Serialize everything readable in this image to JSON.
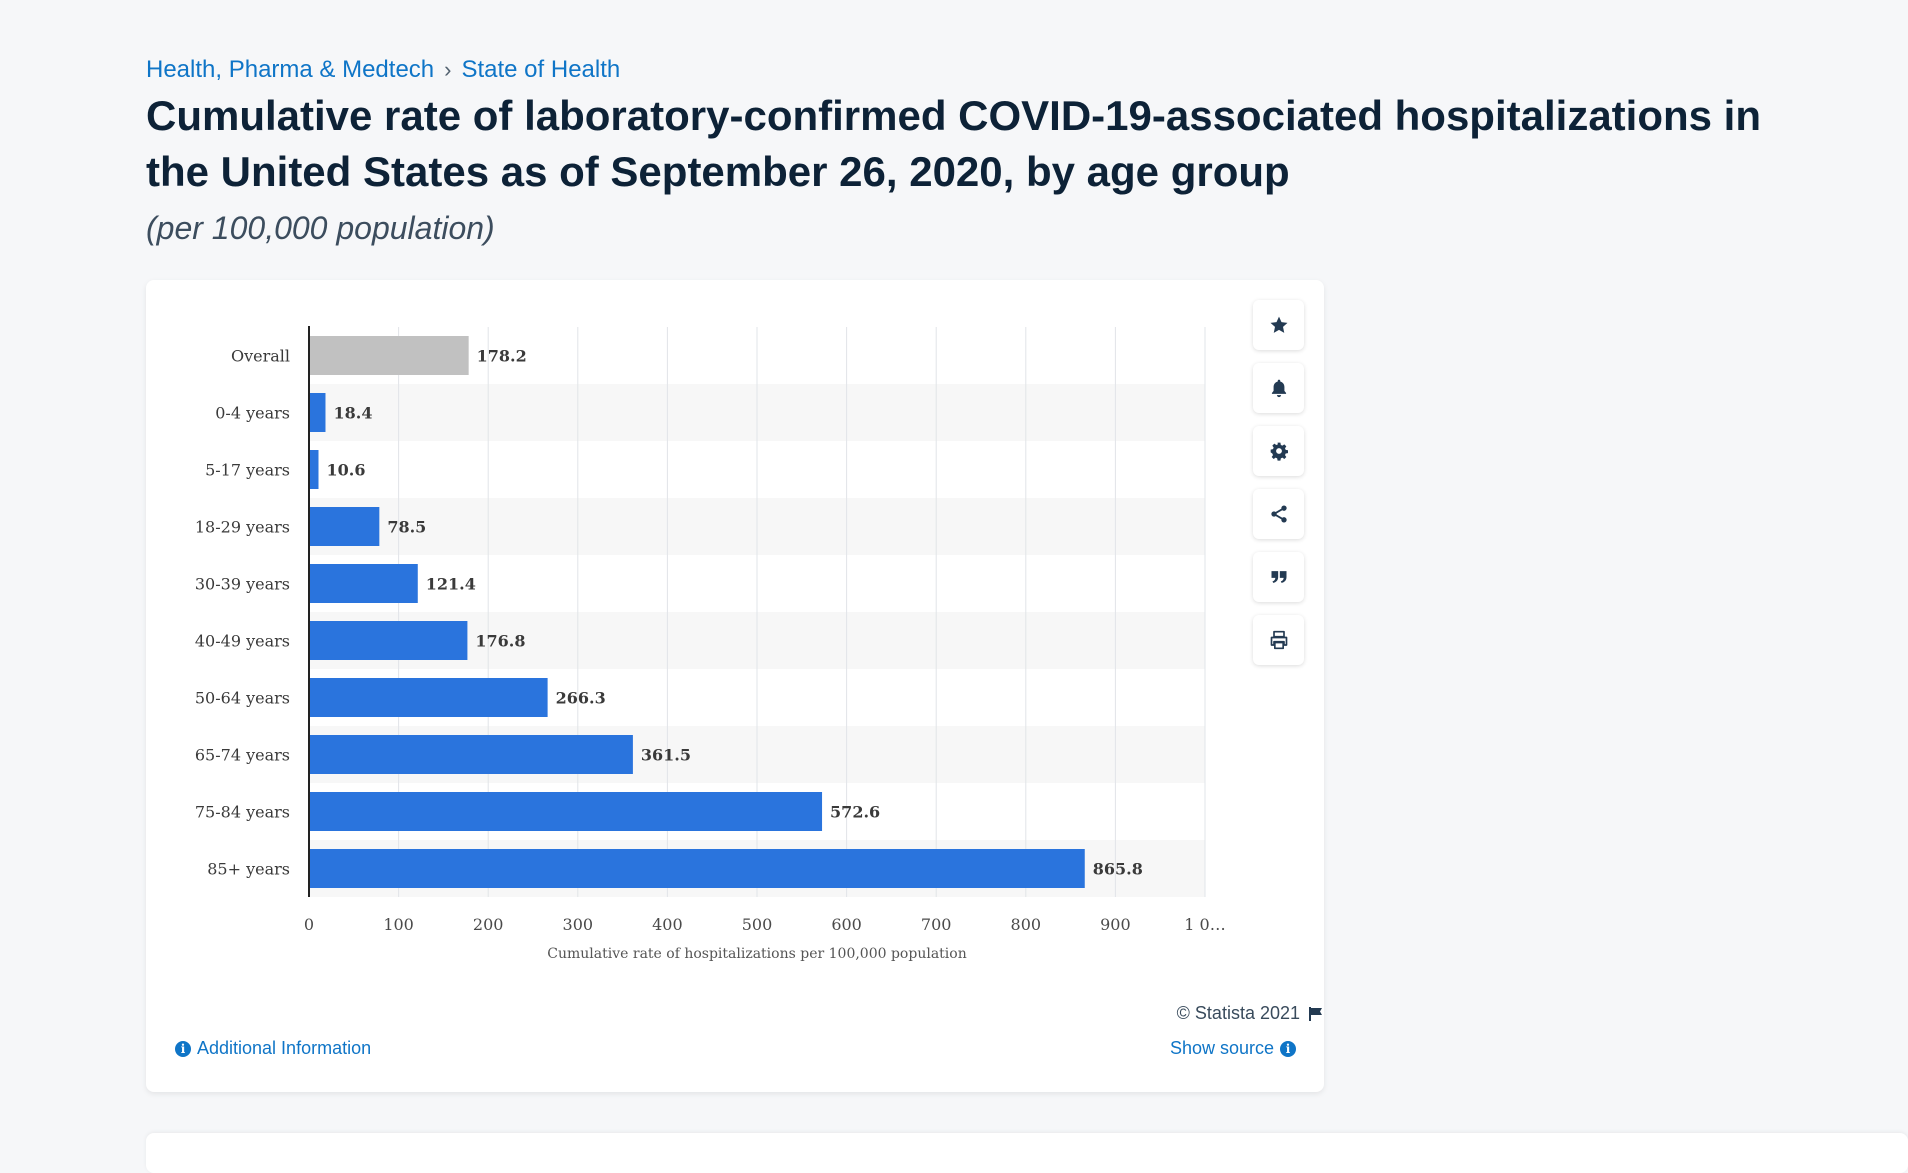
{
  "breadcrumb": {
    "category": "Health, Pharma & Medtech",
    "separator": "›",
    "topic": "State of Health"
  },
  "title": "Cumulative rate of laboratory-confirmed COVID-19-associated hospitalizations in the United States as of September 26, 2020, by age group",
  "subtitle": "(per 100,000 population)",
  "toolbar": {
    "icons": [
      "star-icon",
      "bell-icon",
      "gear-icon",
      "share-icon",
      "quote-icon",
      "print-icon"
    ]
  },
  "footer": {
    "copyright": "© Statista 2021",
    "additional_info": "Additional Information",
    "show_source": "Show source"
  },
  "colors": {
    "bar": "#2a74dd",
    "overall_bar": "#c1c1c1",
    "link": "#0f75c7"
  },
  "chart_data": {
    "type": "bar",
    "orientation": "horizontal",
    "categories": [
      "Overall",
      "0-4 years",
      "5-17 years",
      "18-29 years",
      "30-39 years",
      "40-49 years",
      "50-64 years",
      "65-74 years",
      "75-84 years",
      "85+ years"
    ],
    "values": [
      178.2,
      18.4,
      10.6,
      78.5,
      121.4,
      176.8,
      266.3,
      361.5,
      572.6,
      865.8
    ],
    "value_labels": [
      "178.2",
      "18.4",
      "10.6",
      "78.5",
      "121.4",
      "176.8",
      "266.3",
      "361.5",
      "572.6",
      "865.8"
    ],
    "highlight_first": true,
    "xlabel": "Cumulative rate of hospitalizations per 100,000 population",
    "ylabel": "",
    "xlim": [
      0,
      1000
    ],
    "ticks": [
      0,
      100,
      200,
      300,
      400,
      500,
      600,
      700,
      800,
      900,
      1000
    ],
    "tick_labels": [
      "0",
      "100",
      "200",
      "300",
      "400",
      "500",
      "600",
      "700",
      "800",
      "900",
      "1 0…"
    ],
    "grid": true
  }
}
